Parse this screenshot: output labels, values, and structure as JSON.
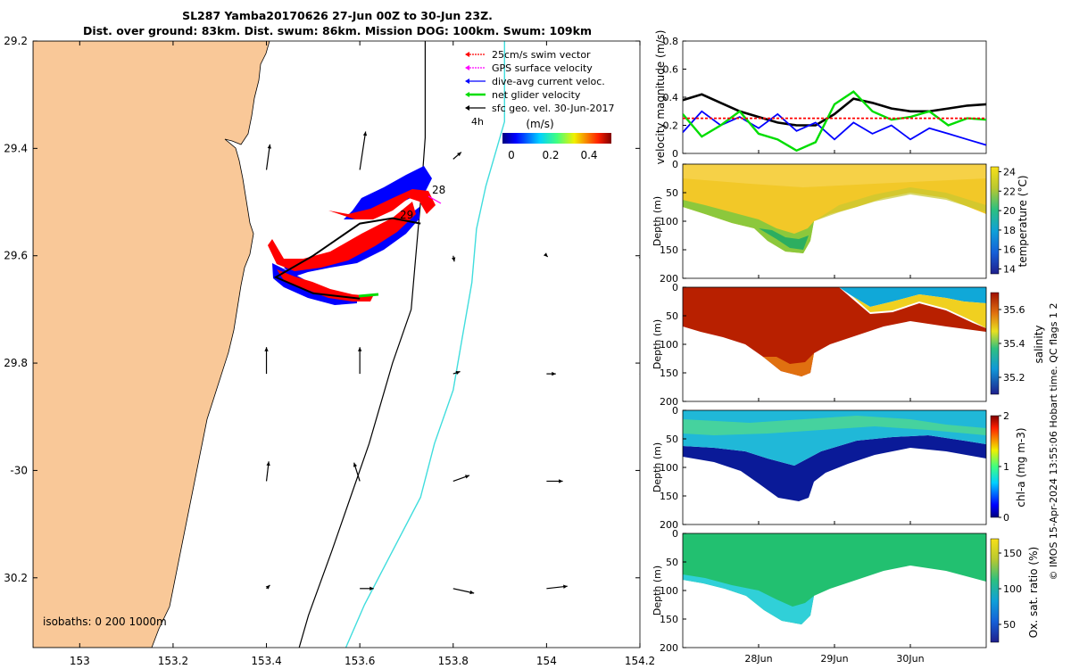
{
  "figure": {
    "title_line1": "SL287 Yamba20170626 27-Jun 00Z to 30-Jun 23Z.",
    "title_line2": "Dist. over ground: 83km. Dist. swum: 86km. Mission DOG: 100km. Swum: 109km",
    "side_credit": "© IMOS 15-Apr-2024 13:55:06 Hobart time. QC flags 1  2"
  },
  "colors": {
    "land": "#f9c898",
    "track_red": "#ff0000",
    "track_blue": "#0000ff",
    "net_green": "#00dd00",
    "cyan_isobath": "#40dddd",
    "black": "#000000"
  },
  "chart_data": [
    {
      "type": "map",
      "xlim": [
        152.9,
        154.2
      ],
      "ylim": [
        -30.33,
        -29.2
      ],
      "xticks": [
        153,
        153.2,
        153.4,
        153.6,
        153.8,
        154,
        154.2
      ],
      "xtick_labels": [
        "153",
        "153.2",
        "153.4",
        "153.6",
        "153.8",
        "154",
        "154.2"
      ],
      "yticks": [
        -29.2,
        -29.4,
        -29.6,
        -29.8,
        -30,
        -30.2
      ],
      "ytick_labels": [
        "29.2",
        "29.4",
        "29.6",
        "29.8",
        "-30",
        "30.2"
      ],
      "legend": {
        "placement": "top-right",
        "entries": [
          {
            "label": "25cm/s swim vector",
            "color": "#ff0000"
          },
          {
            "label": "GPS surface velocity",
            "color": "#ff00ff"
          },
          {
            "label": "dive-avg current veloc.",
            "color": "#0000ff"
          },
          {
            "label": "net glider velocity",
            "color": "#00dd00"
          },
          {
            "label": "sfc geo. vel. 30-Jun-2017",
            "color": "#000000"
          }
        ]
      },
      "colorbar": {
        "label": "(m/s)",
        "tick_labels": [
          "0",
          "0.2",
          "0.4"
        ],
        "range": [
          0,
          0.5
        ]
      },
      "scale_label": "4h",
      "isobath_label": "isobaths: 0   200  1000m",
      "day_labels": [
        "28",
        "29"
      ],
      "track": [
        [
          153.73,
          -29.54
        ],
        [
          153.67,
          -29.53
        ],
        [
          153.6,
          -29.54
        ],
        [
          153.5,
          -29.6
        ],
        [
          153.42,
          -29.64
        ],
        [
          153.5,
          -29.67
        ],
        [
          153.6,
          -29.68
        ]
      ],
      "isobath_200m": [
        [
          153.74,
          -29.2
        ],
        [
          153.74,
          -29.38
        ],
        [
          153.73,
          -29.5
        ],
        [
          153.72,
          -29.6
        ],
        [
          153.71,
          -29.7
        ],
        [
          153.67,
          -29.8
        ],
        [
          153.62,
          -29.95
        ],
        [
          153.58,
          -30.05
        ],
        [
          153.54,
          -30.15
        ],
        [
          153.49,
          -30.27
        ],
        [
          153.47,
          -30.33
        ]
      ],
      "isobath_1000m": [
        [
          153.91,
          -29.2
        ],
        [
          153.91,
          -29.35
        ],
        [
          153.87,
          -29.47
        ],
        [
          153.85,
          -29.55
        ],
        [
          153.84,
          -29.65
        ],
        [
          153.82,
          -29.75
        ],
        [
          153.8,
          -29.85
        ],
        [
          153.76,
          -29.95
        ],
        [
          153.73,
          -30.05
        ],
        [
          153.67,
          -30.15
        ],
        [
          153.61,
          -30.25
        ],
        [
          153.57,
          -30.33
        ]
      ],
      "vectors": [
        {
          "lon": 153.4,
          "lat": -29.44,
          "u": 0.03,
          "v": 0.22
        },
        {
          "lon": 153.6,
          "lat": -29.44,
          "u": 0.05,
          "v": 0.33
        },
        {
          "lon": 153.8,
          "lat": -29.42,
          "u": 0.07,
          "v": 0.06
        },
        {
          "lon": 153.4,
          "lat": -29.82,
          "u": 0.0,
          "v": 0.23
        },
        {
          "lon": 153.6,
          "lat": -29.82,
          "u": 0.0,
          "v": 0.23
        },
        {
          "lon": 153.8,
          "lat": -29.82,
          "u": 0.06,
          "v": 0.02
        },
        {
          "lon": 154.0,
          "lat": -29.82,
          "u": 0.08,
          "v": 0.0
        },
        {
          "lon": 154.2,
          "lat": -29.82,
          "u": 0.05,
          "v": -0.06
        },
        {
          "lon": 153.8,
          "lat": -29.6,
          "u": 0.01,
          "v": -0.05
        },
        {
          "lon": 154.0,
          "lat": -29.6,
          "u": 0.01,
          "v": -0.01
        },
        {
          "lon": 154.2,
          "lat": -29.6,
          "u": 0.02,
          "v": -0.04
        },
        {
          "lon": 153.4,
          "lat": -30.02,
          "u": 0.02,
          "v": 0.17
        },
        {
          "lon": 153.6,
          "lat": -30.02,
          "u": -0.05,
          "v": 0.16
        },
        {
          "lon": 153.8,
          "lat": -30.02,
          "u": 0.14,
          "v": 0.05
        },
        {
          "lon": 154.0,
          "lat": -30.02,
          "u": 0.14,
          "v": 0.0
        },
        {
          "lon": 154.2,
          "lat": -30.02,
          "u": 0.12,
          "v": -0.06
        },
        {
          "lon": 153.8,
          "lat": -30.22,
          "u": 0.18,
          "v": -0.04
        },
        {
          "lon": 154.0,
          "lat": -30.22,
          "u": 0.18,
          "v": 0.02
        },
        {
          "lon": 154.2,
          "lat": -30.22,
          "u": 0.14,
          "v": -0.08
        },
        {
          "lon": 153.6,
          "lat": -30.22,
          "u": 0.12,
          "v": 0.0
        },
        {
          "lon": 153.4,
          "lat": -30.22,
          "u": 0.03,
          "v": 0.03
        }
      ]
    },
    {
      "type": "line",
      "ylabel": "velocity magnitude (m/s)",
      "ylim": [
        0,
        0.8
      ],
      "yticks": [
        0,
        0.2,
        0.4,
        0.6,
        0.8
      ],
      "ytick_labels": [
        "0",
        "0.2",
        "0.4",
        "0.6",
        "0.8"
      ],
      "xlim": [
        27,
        31
      ],
      "xticks": [
        28,
        29,
        30
      ],
      "series": [
        {
          "color": "#000000",
          "x": [
            27.0,
            27.25,
            27.5,
            27.75,
            28.0,
            28.25,
            28.5,
            28.75,
            29.0,
            29.25,
            29.5,
            29.75,
            30.0,
            30.25,
            30.5,
            30.75,
            31.0
          ],
          "y": [
            0.38,
            0.42,
            0.36,
            0.3,
            0.26,
            0.22,
            0.2,
            0.2,
            0.28,
            0.39,
            0.36,
            0.32,
            0.3,
            0.3,
            0.32,
            0.34,
            0.35
          ]
        },
        {
          "color": "#0000ff",
          "x": [
            27.0,
            27.25,
            27.5,
            27.75,
            28.0,
            28.25,
            28.5,
            28.75,
            29.0,
            29.25,
            29.5,
            29.75,
            30.0,
            30.25,
            30.5,
            30.75,
            31.0
          ],
          "y": [
            0.15,
            0.3,
            0.2,
            0.26,
            0.18,
            0.28,
            0.16,
            0.22,
            0.1,
            0.22,
            0.14,
            0.2,
            0.1,
            0.18,
            0.14,
            0.1,
            0.06
          ]
        },
        {
          "color": "#00dd00",
          "x": [
            27.0,
            27.25,
            27.5,
            27.75,
            28.0,
            28.25,
            28.5,
            28.75,
            29.0,
            29.25,
            29.5,
            29.75,
            30.0,
            30.25,
            30.5,
            30.75,
            31.0
          ],
          "y": [
            0.28,
            0.12,
            0.2,
            0.3,
            0.14,
            0.1,
            0.02,
            0.08,
            0.35,
            0.44,
            0.3,
            0.24,
            0.26,
            0.3,
            0.2,
            0.25,
            0.24
          ]
        },
        {
          "color": "#ff0000",
          "x": [
            27.0,
            31.0
          ],
          "y": [
            0.25,
            0.25
          ]
        }
      ]
    },
    {
      "type": "heatmap",
      "variable": "temperature",
      "cbar_label": "temperature (°C)",
      "clim": [
        13.5,
        24.5
      ],
      "cticks": [
        "24",
        "22",
        "20",
        "18",
        "16",
        "14"
      ],
      "ylabel": "Depth (m)",
      "ylim": [
        200,
        0
      ],
      "yticks": [
        "0",
        "50",
        "100",
        "150",
        "200"
      ]
    },
    {
      "type": "heatmap",
      "variable": "salinity",
      "cbar_label": "salinity",
      "clim": [
        35.1,
        35.7
      ],
      "cticks": [
        "35.6",
        "35.4",
        "35.2"
      ],
      "ylabel": "Depth (m)",
      "ylim": [
        200,
        0
      ],
      "yticks": [
        "0",
        "50",
        "100",
        "150",
        "200"
      ]
    },
    {
      "type": "heatmap",
      "variable": "chlorophyll",
      "cbar_label": "chl-a (mg m-3)",
      "clim": [
        0,
        2
      ],
      "cticks": [
        "2",
        "1",
        "0"
      ],
      "ylabel": "Depth (m)",
      "ylim": [
        200,
        0
      ],
      "yticks": [
        "0",
        "50",
        "100",
        "150",
        "200"
      ]
    },
    {
      "type": "heatmap",
      "variable": "oxygen",
      "cbar_label": "Ox. sat. ratio (%)",
      "clim": [
        25,
        170
      ],
      "cticks": [
        "150",
        "100",
        "50"
      ],
      "ylabel": "Depth (m)",
      "ylim": [
        200,
        0
      ],
      "yticks": [
        "0",
        "50",
        "100",
        "150",
        "200"
      ],
      "xticks": [
        28,
        29,
        30
      ],
      "xtick_labels": [
        "28Jun",
        "29Jun",
        "30Jun"
      ]
    }
  ]
}
